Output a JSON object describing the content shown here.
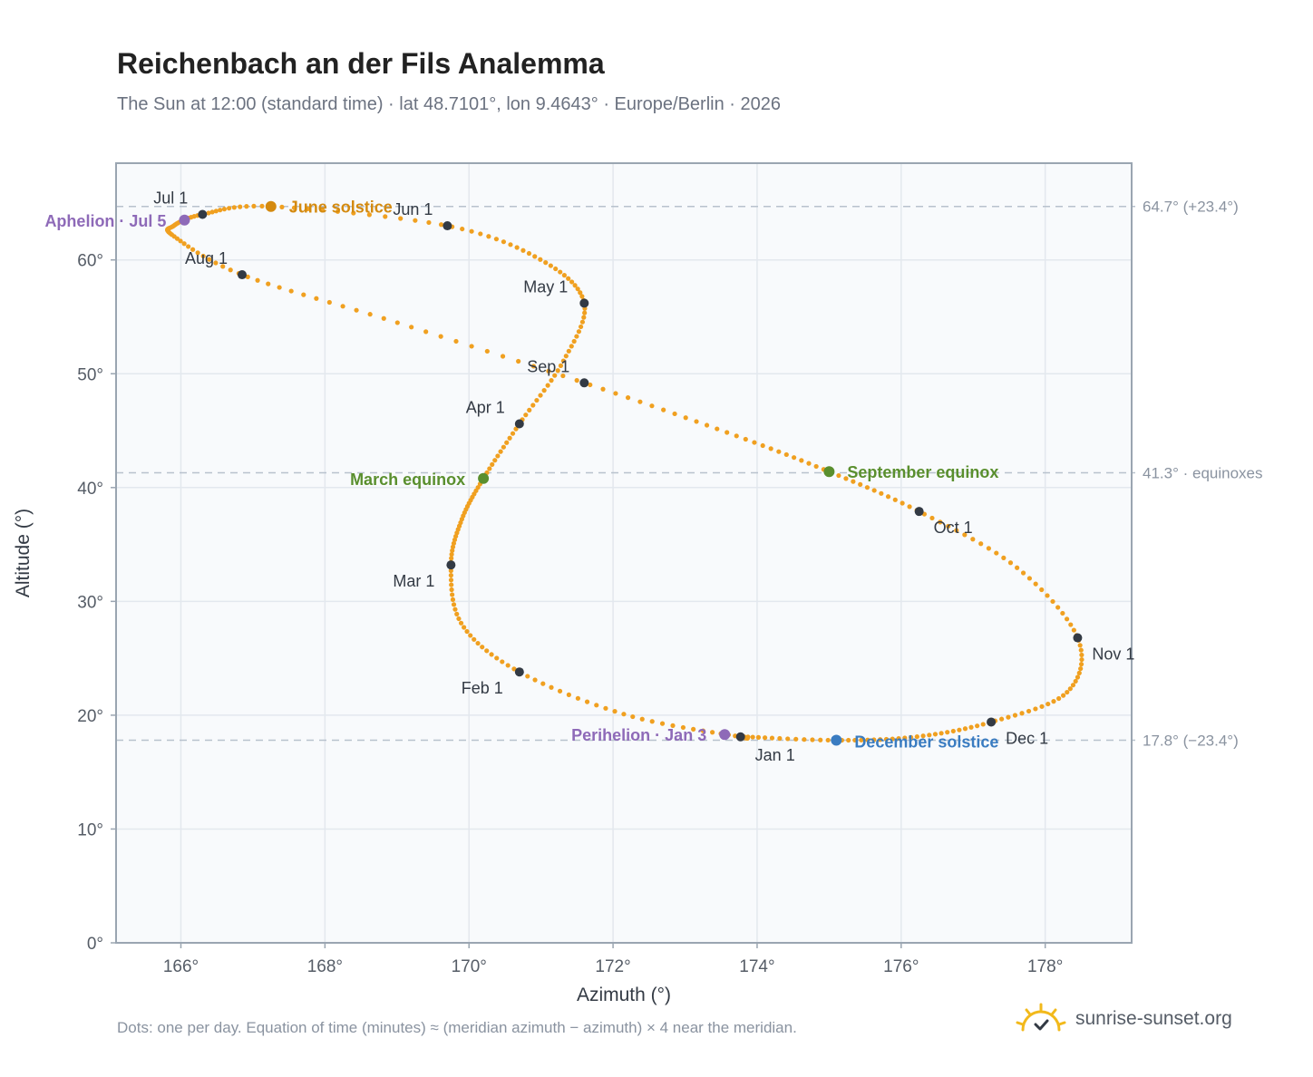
{
  "title": "Reichenbach an der Fils Analemma",
  "subtitle": "The Sun at 12:00 (standard time) · lat 48.7101°, lon 9.4643° · Europe/Berlin · 2026",
  "footnote": "Dots: one per day. Equation of time (minutes) ≈ (meridian azimuth − azimuth) × 4 near the meridian.",
  "brand": {
    "text": "sunrise-sunset.org",
    "icon": "sun-logo-icon",
    "color": "#f2b91b"
  },
  "chart_data": {
    "type": "scatter",
    "xlabel": "Azimuth (°)",
    "ylabel": "Altitude (°)",
    "xlim": [
      165.1,
      179.2
    ],
    "ylim": [
      0,
      68.5
    ],
    "xticks": [
      166,
      168,
      170,
      172,
      174,
      176,
      178
    ],
    "xtick_labels": [
      "166°",
      "168°",
      "170°",
      "172°",
      "174°",
      "176°",
      "178°"
    ],
    "yticks": [
      0,
      10,
      20,
      30,
      40,
      50,
      60
    ],
    "ytick_labels": [
      "0°",
      "10°",
      "20°",
      "30°",
      "40°",
      "50°",
      "60°"
    ],
    "grid": true,
    "colors": {
      "path": "#f0a020",
      "month": "#333a44",
      "solstice_june": "#d48a0f",
      "solstice_december": "#3a7cc1",
      "equinox": "#5a8f2e",
      "apsis": "#8e6ab8",
      "reference": "#b8c2cd"
    },
    "series_note_path": "one dot per day of 2026",
    "path_keypoints": [
      {
        "date": "Jan 1",
        "x": 173.77,
        "y": 18.1
      },
      {
        "date": "Jan 15",
        "x": 172.2,
        "y": 20.0
      },
      {
        "date": "Feb 1",
        "x": 170.7,
        "y": 23.8
      },
      {
        "date": "Feb 15",
        "x": 169.9,
        "y": 28.0
      },
      {
        "date": "Mar 1",
        "x": 169.75,
        "y": 33.2
      },
      {
        "date": "Mar 10",
        "x": 169.9,
        "y": 37.2
      },
      {
        "date": "Mar 20",
        "x": 170.2,
        "y": 40.8
      },
      {
        "date": "Apr 1",
        "x": 170.7,
        "y": 45.6
      },
      {
        "date": "Apr 15",
        "x": 171.3,
        "y": 51.0
      },
      {
        "date": "May 1",
        "x": 171.6,
        "y": 56.2
      },
      {
        "date": "May 15",
        "x": 171.0,
        "y": 60.0
      },
      {
        "date": "Jun 1",
        "x": 169.7,
        "y": 63.0
      },
      {
        "date": "Jun 21",
        "x": 167.25,
        "y": 64.7
      },
      {
        "date": "Jul 1",
        "x": 166.3,
        "y": 64.0
      },
      {
        "date": "Jul 10",
        "x": 165.9,
        "y": 63.0
      },
      {
        "date": "Jul 15",
        "x": 165.9,
        "y": 62.1
      },
      {
        "date": "Aug 1",
        "x": 166.85,
        "y": 58.7
      },
      {
        "date": "Aug 15",
        "x": 169.0,
        "y": 54.5
      },
      {
        "date": "Sep 1",
        "x": 171.6,
        "y": 49.2
      },
      {
        "date": "Sep 15",
        "x": 173.6,
        "y": 44.8
      },
      {
        "date": "Sep 23",
        "x": 175.0,
        "y": 41.4
      },
      {
        "date": "Oct 1",
        "x": 176.25,
        "y": 37.9
      },
      {
        "date": "Oct 15",
        "x": 177.6,
        "y": 33.0
      },
      {
        "date": "Nov 1",
        "x": 178.45,
        "y": 26.8
      },
      {
        "date": "Nov 15",
        "x": 178.3,
        "y": 22.0
      },
      {
        "date": "Dec 1",
        "x": 177.25,
        "y": 19.4
      },
      {
        "date": "Dec 10",
        "x": 176.2,
        "y": 18.1
      },
      {
        "date": "Dec 21",
        "x": 175.1,
        "y": 17.8
      },
      {
        "date": "Dec 31",
        "x": 173.85,
        "y": 18.1
      }
    ],
    "month_markers": [
      {
        "label": "Jan 1",
        "x": 173.77,
        "y": 18.1
      },
      {
        "label": "Feb 1",
        "x": 170.7,
        "y": 23.8
      },
      {
        "label": "Mar 1",
        "x": 169.75,
        "y": 33.2
      },
      {
        "label": "Apr 1",
        "x": 170.7,
        "y": 45.6
      },
      {
        "label": "May 1",
        "x": 171.6,
        "y": 56.2
      },
      {
        "label": "Jun 1",
        "x": 169.7,
        "y": 63.0
      },
      {
        "label": "Jul 1",
        "x": 166.3,
        "y": 64.0
      },
      {
        "label": "Aug 1",
        "x": 166.85,
        "y": 58.7
      },
      {
        "label": "Sep 1",
        "x": 171.6,
        "y": 49.2
      },
      {
        "label": "Oct 1",
        "x": 176.25,
        "y": 37.9
      },
      {
        "label": "Nov 1",
        "x": 178.45,
        "y": 26.8
      },
      {
        "label": "Dec 1",
        "x": 177.25,
        "y": 19.4
      }
    ],
    "events": [
      {
        "label": "June solstice",
        "x": 167.25,
        "y": 64.7,
        "kind": "solstice_june"
      },
      {
        "label": "December solstice",
        "x": 175.1,
        "y": 17.8,
        "kind": "solstice_december"
      },
      {
        "label": "March equinox",
        "x": 170.2,
        "y": 40.8,
        "kind": "equinox"
      },
      {
        "label": "September equinox",
        "x": 175.0,
        "y": 41.4,
        "kind": "equinox"
      },
      {
        "label": "Aphelion · Jul 5",
        "x": 166.05,
        "y": 63.5,
        "kind": "apsis"
      },
      {
        "label": "Perihelion · Jan 3",
        "x": 173.55,
        "y": 18.3,
        "kind": "apsis"
      }
    ],
    "reference_lines": [
      {
        "y": 64.7,
        "label": "64.7° (+23.4°)"
      },
      {
        "y": 41.3,
        "label": "41.3° · equinoxes"
      },
      {
        "y": 17.8,
        "label": "17.8° (−23.4°)"
      }
    ]
  }
}
